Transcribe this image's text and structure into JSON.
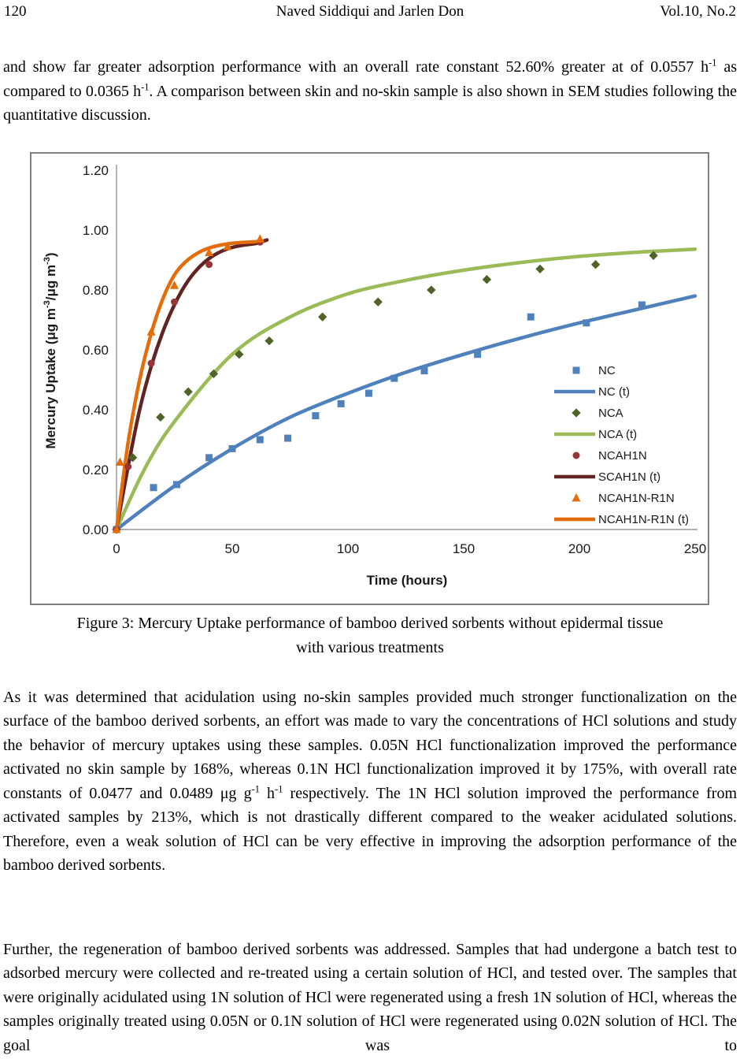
{
  "header": {
    "page_number": "120",
    "title": "Naved Siddiqui and Jarlen Don",
    "volume": "Vol.10, No.2"
  },
  "paragraphs": {
    "p1": [
      "and show far greater adsorption performance with an overall rate constant 52.60% greater at of 0.0557 h",
      {
        "sup": "-1"
      },
      " as compared to 0.0365 h",
      {
        "sup": "-1"
      },
      ". A comparison between skin and no-skin sample is also shown in SEM studies following the quantitative discussion."
    ],
    "p2": [
      "As it was determined that acidulation using no-skin samples provided much stronger functionalization on the surface of the bamboo derived sorbents, an effort was made to vary the concentrations of HCl solutions and study the behavior of mercury uptakes using these samples. 0.05N HCl functionalization improved the performance activated no skin sample by 168%, whereas 0.1N HCl functionalization improved it by 175%, with overall rate constants of 0.0477 and 0.0489 μg g",
      {
        "sup": "-1"
      },
      " h",
      {
        "sup": "-1"
      },
      " respectively. The 1N HCl solution improved the performance from activated samples by 213%, which is not drastically different compared to the weaker acidulated solutions. Therefore, even a weak solution of HCl can be very effective in improving the adsorption performance of the bamboo derived sorbents."
    ],
    "p3": [
      "Further, the regeneration of bamboo derived sorbents was addressed. Samples that had undergone a batch test to adsorbed mercury were collected and re-treated using a certain solution of HCl, and tested over. The samples that were originally acidulated using 1N solution of HCl were regenerated using a fresh 1N solution of HCl, whereas the samples originally treated using 0.05N or 0.1N solution of HCl were regenerated using 0.02N solution of HCl. The goal was to"
    ]
  },
  "figure": {
    "caption_line1": "Figure 3: Mercury Uptake performance of bamboo derived sorbents without epidermal tissue",
    "caption_line2": "with various treatments"
  },
  "chart_data": {
    "type": "scatter",
    "title": "",
    "xlabel": "Time (hours)",
    "ylabel_segments": [
      "Mercury Uptake (μg m",
      {
        "sup": "-3"
      },
      "/μg m",
      {
        "sup": "-3"
      },
      ")"
    ],
    "xlim": [
      0,
      250
    ],
    "ylim": [
      0,
      1.2
    ],
    "xticks": [
      0,
      50,
      100,
      150,
      200,
      250
    ],
    "yticks": [
      "0.00",
      "0.20",
      "0.40",
      "0.60",
      "0.80",
      "1.00",
      "1.20"
    ],
    "grid": false,
    "legend_position": "inside-right",
    "axis_color": "#9a9a9a",
    "text_color": "#1a1a1a",
    "series": [
      {
        "name": "NC",
        "kind": "scatter",
        "marker": "square",
        "color": "#4F81BD",
        "points": [
          [
            0,
            0
          ],
          [
            16,
            0.14
          ],
          [
            26,
            0.15
          ],
          [
            40,
            0.24
          ],
          [
            50,
            0.27
          ],
          [
            62,
            0.3
          ],
          [
            74,
            0.305
          ],
          [
            86,
            0.38
          ],
          [
            97,
            0.42
          ],
          [
            109,
            0.455
          ],
          [
            120,
            0.505
          ],
          [
            133,
            0.53
          ],
          [
            156,
            0.585
          ],
          [
            179,
            0.71
          ],
          [
            203,
            0.69
          ],
          [
            227,
            0.75
          ]
        ]
      },
      {
        "name": "NC (t)",
        "kind": "line",
        "color": "#4F81BD",
        "points": [
          [
            0,
            0
          ],
          [
            25,
            0.145
          ],
          [
            50,
            0.27
          ],
          [
            75,
            0.375
          ],
          [
            100,
            0.455
          ],
          [
            125,
            0.525
          ],
          [
            150,
            0.585
          ],
          [
            175,
            0.64
          ],
          [
            200,
            0.69
          ],
          [
            225,
            0.735
          ],
          [
            250,
            0.78
          ]
        ]
      },
      {
        "name": "NCA",
        "kind": "scatter",
        "marker": "diamond",
        "color": "#4F6228",
        "points": [
          [
            0,
            0
          ],
          [
            7,
            0.24
          ],
          [
            19,
            0.375
          ],
          [
            31,
            0.46
          ],
          [
            42,
            0.52
          ],
          [
            53,
            0.585
          ],
          [
            66,
            0.63
          ],
          [
            89,
            0.71
          ],
          [
            113,
            0.76
          ],
          [
            136,
            0.8
          ],
          [
            160,
            0.835
          ],
          [
            183,
            0.87
          ],
          [
            207,
            0.885
          ],
          [
            232,
            0.915
          ]
        ]
      },
      {
        "name": "NCA (t)",
        "kind": "line",
        "color": "#9BBB59",
        "points": [
          [
            0,
            0
          ],
          [
            12,
            0.2
          ],
          [
            25,
            0.36
          ],
          [
            50,
            0.585
          ],
          [
            75,
            0.71
          ],
          [
            100,
            0.787
          ],
          [
            125,
            0.832
          ],
          [
            150,
            0.866
          ],
          [
            175,
            0.892
          ],
          [
            200,
            0.912
          ],
          [
            225,
            0.926
          ],
          [
            250,
            0.936
          ]
        ]
      },
      {
        "name": "NCAH1N",
        "kind": "scatter",
        "marker": "circle",
        "color": "#953735",
        "points": [
          [
            0,
            0
          ],
          [
            5,
            0.21
          ],
          [
            15,
            0.555
          ],
          [
            25,
            0.76
          ],
          [
            40,
            0.885
          ],
          [
            62,
            0.96
          ]
        ]
      },
      {
        "name": "SCAH1N (t)",
        "kind": "line",
        "color": "#622423",
        "points": [
          [
            0,
            0
          ],
          [
            5,
            0.21
          ],
          [
            10,
            0.4
          ],
          [
            15,
            0.545
          ],
          [
            20,
            0.66
          ],
          [
            25,
            0.75
          ],
          [
            30,
            0.82
          ],
          [
            35,
            0.87
          ],
          [
            40,
            0.905
          ],
          [
            45,
            0.928
          ],
          [
            50,
            0.942
          ],
          [
            55,
            0.95
          ],
          [
            60,
            0.955
          ],
          [
            65,
            0.967
          ]
        ]
      },
      {
        "name": "NCAH1N-R1N",
        "kind": "scatter",
        "marker": "triangle",
        "color": "#E46C0A",
        "points": [
          [
            0,
            0
          ],
          [
            1.5,
            0.225
          ],
          [
            15,
            0.66
          ],
          [
            25,
            0.815
          ],
          [
            40,
            0.925
          ],
          [
            48,
            0.945
          ],
          [
            62,
            0.97
          ]
        ]
      },
      {
        "name": "NCAH1N-R1N (t)",
        "kind": "line",
        "color": "#E46C0A",
        "points": [
          [
            0,
            0
          ],
          [
            5,
            0.29
          ],
          [
            10,
            0.5
          ],
          [
            15,
            0.655
          ],
          [
            20,
            0.77
          ],
          [
            25,
            0.85
          ],
          [
            30,
            0.895
          ],
          [
            35,
            0.923
          ],
          [
            40,
            0.94
          ],
          [
            45,
            0.95
          ],
          [
            50,
            0.956
          ],
          [
            55,
            0.959
          ],
          [
            60,
            0.961
          ],
          [
            63,
            0.963
          ]
        ]
      }
    ]
  }
}
